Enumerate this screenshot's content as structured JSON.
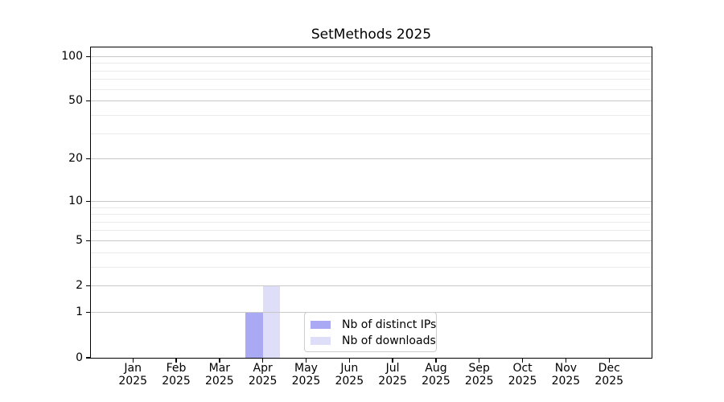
{
  "title": "SetMethods 2025",
  "chart_data": {
    "type": "bar",
    "title": "SetMethods 2025",
    "categories": [
      "Jan 2025",
      "Feb 2025",
      "Mar 2025",
      "Apr 2025",
      "May 2025",
      "Jun 2025",
      "Jul 2025",
      "Aug 2025",
      "Sep 2025",
      "Oct 2025",
      "Nov 2025",
      "Dec 2025"
    ],
    "month_labels": [
      "Jan",
      "Feb",
      "Mar",
      "Apr",
      "May",
      "Jun",
      "Jul",
      "Aug",
      "Sep",
      "Oct",
      "Nov",
      "Dec"
    ],
    "year_label": "2025",
    "series": [
      {
        "name": "Nb of distinct IPs",
        "color": "#a9a9f4",
        "values": [
          0,
          0,
          0,
          1,
          0,
          0,
          0,
          0,
          0,
          0,
          0,
          0
        ]
      },
      {
        "name": "Nb of downloads",
        "color": "#dedef8",
        "values": [
          0,
          0,
          0,
          2,
          0,
          0,
          0,
          0,
          0,
          0,
          0,
          0
        ]
      }
    ],
    "y_axis": {
      "scale": "log1p",
      "max": 115,
      "major_ticks": [
        0,
        1,
        2,
        5,
        10,
        20,
        50,
        100
      ],
      "major_tick_labels": [
        "0",
        "1",
        "2",
        "5",
        "10",
        "20",
        "50",
        "100"
      ],
      "minor_ticks": [
        3,
        4,
        6,
        7,
        8,
        9,
        30,
        40,
        60,
        70,
        80,
        90
      ]
    },
    "xlabel": "",
    "ylabel": "",
    "grid": {
      "enabled": true,
      "major_color": "#c9c9c9",
      "minor_color": "#ebebeb"
    },
    "legend": {
      "position": "lower center",
      "items": [
        "Nb of distinct IPs",
        "Nb of downloads"
      ]
    },
    "colors": {
      "frame": "#000000",
      "text": "#000000",
      "background": "#ffffff",
      "legend_border": "#cccccc"
    }
  }
}
